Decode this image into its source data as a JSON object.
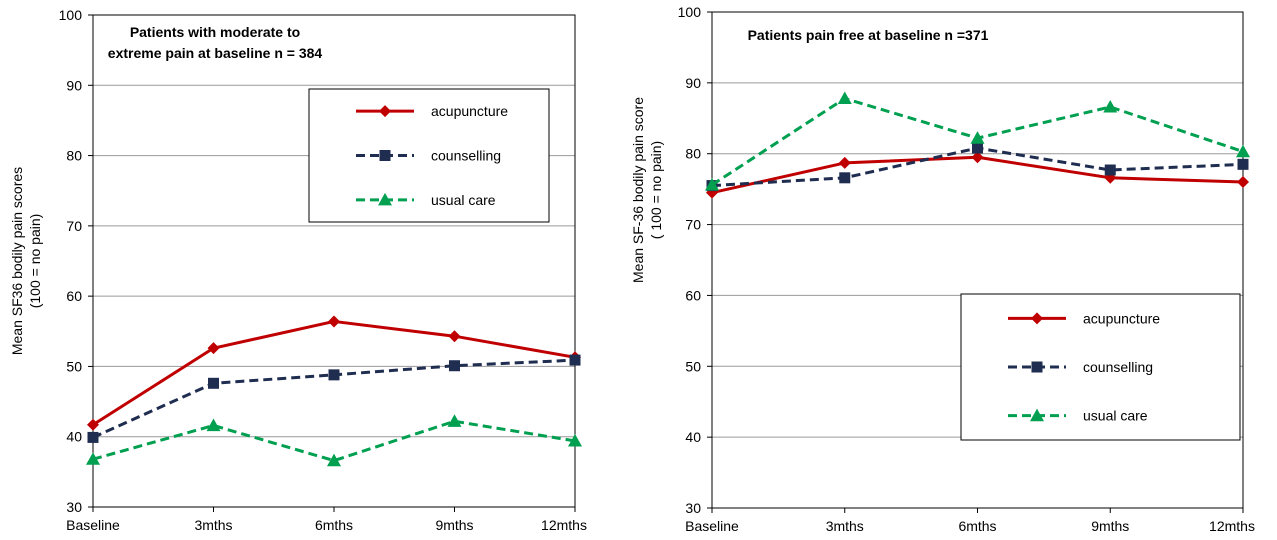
{
  "chart_data": [
    {
      "type": "line",
      "title": [
        "Patients with moderate to",
        "extreme pain at baseline n = 384"
      ],
      "ylabel": [
        "Mean SF36 bodily pain scores",
        "(100 = no pain)"
      ],
      "xlabel": "",
      "categories": [
        "Baseline",
        "3mths",
        "6mths",
        "9mths",
        "12mths"
      ],
      "ylim": [
        30,
        100
      ],
      "yticks": [
        30,
        40,
        50,
        60,
        70,
        80,
        90,
        100
      ],
      "grid": true,
      "legend_position": "top-right",
      "series": [
        {
          "name": "acupuncture",
          "values": [
            41.7,
            52.6,
            56.4,
            54.3,
            51.3
          ],
          "color": "#c00000",
          "marker": "diamond",
          "dash": "solid"
        },
        {
          "name": "counselling",
          "values": [
            39.9,
            47.6,
            48.8,
            50.1,
            50.9
          ],
          "color": "#1f2d50",
          "marker": "square",
          "dash": "dashed"
        },
        {
          "name": "usual care",
          "values": [
            36.8,
            41.6,
            36.6,
            42.2,
            39.4
          ],
          "color": "#00a050",
          "marker": "triangle",
          "dash": "dashed"
        }
      ]
    },
    {
      "type": "line",
      "title": [
        "Patients pain free at baseline n =371"
      ],
      "ylabel": [
        "Mean SF-36 bodily pain score",
        "( 100 = no pain)"
      ],
      "xlabel": "",
      "categories": [
        "Baseline",
        "3mths",
        "6mths",
        "9mths",
        "12mths"
      ],
      "ylim": [
        30,
        100
      ],
      "yticks": [
        30,
        40,
        50,
        60,
        70,
        80,
        90,
        100
      ],
      "grid": true,
      "legend_position": "bottom-right",
      "series": [
        {
          "name": "acupuncture",
          "values": [
            74.5,
            78.7,
            79.5,
            76.6,
            76.0
          ],
          "color": "#c00000",
          "marker": "diamond",
          "dash": "solid"
        },
        {
          "name": "counselling",
          "values": [
            75.5,
            76.6,
            80.8,
            77.7,
            78.5
          ],
          "color": "#1f2d50",
          "marker": "square",
          "dash": "dashed"
        },
        {
          "name": "usual care",
          "values": [
            75.6,
            87.8,
            82.2,
            86.6,
            80.3
          ],
          "color": "#00a050",
          "marker": "triangle",
          "dash": "dashed"
        }
      ]
    }
  ]
}
